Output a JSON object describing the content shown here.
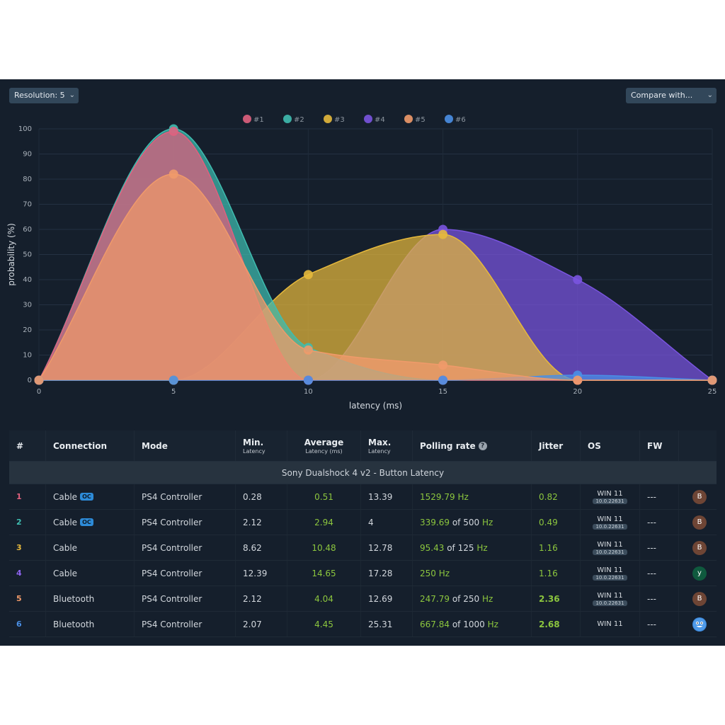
{
  "controls": {
    "resolution_label": "Resolution: 5",
    "compare_label": "Compare with..."
  },
  "chart_data": {
    "type": "area",
    "xlabel": "latency (ms)",
    "ylabel": "probability (%)",
    "xlim": [
      0,
      25
    ],
    "ylim": [
      0,
      100
    ],
    "x_ticks": [
      "0",
      "5",
      "10",
      "15",
      "20",
      "25"
    ],
    "y_ticks": [
      "0",
      "10",
      "20",
      "30",
      "40",
      "50",
      "60",
      "70",
      "80",
      "90",
      "100"
    ],
    "grid": true,
    "legend_position": "top-center",
    "x": [
      0,
      5,
      10,
      15,
      20,
      25
    ],
    "series": [
      {
        "name": "#1",
        "color": "#e0607e",
        "values": [
          0,
          99,
          0,
          0,
          0,
          0
        ]
      },
      {
        "name": "#2",
        "color": "#3fbdb0",
        "values": [
          0,
          100,
          13,
          0,
          0,
          0
        ]
      },
      {
        "name": "#3",
        "color": "#e6b93c",
        "values": [
          0,
          0,
          42,
          58,
          0,
          0
        ]
      },
      {
        "name": "#4",
        "color": "#7a54e0",
        "values": [
          0,
          0,
          0,
          60,
          40,
          0
        ]
      },
      {
        "name": "#5",
        "color": "#f09a6a",
        "values": [
          0,
          82,
          12,
          6,
          0,
          0
        ]
      },
      {
        "name": "#6",
        "color": "#4a8fe6",
        "values": [
          0,
          0,
          0,
          0,
          2,
          0
        ]
      }
    ]
  },
  "table": {
    "headers": {
      "index": "#",
      "connection": "Connection",
      "mode": "Mode",
      "min": "Min.",
      "min_sub": "Latency",
      "avg": "Average",
      "avg_sub": "Latency (ms)",
      "max": "Max.",
      "max_sub": "Latency",
      "polling": "Polling rate",
      "polling_help": "?",
      "jitter": "Jitter",
      "os": "OS",
      "fw": "FW"
    },
    "group_title": "Sony Dualshock 4 v2 - Button Latency",
    "rows": [
      {
        "idx": "1",
        "idx_color": "#e0607e",
        "connection": "Cable",
        "oc": "OC",
        "mode": "PS4 Controller",
        "min": "0.28",
        "avg": "0.51",
        "max": "13.39",
        "poll_value": "1529.79",
        "poll_of": "",
        "poll_unit": "Hz",
        "jitter": "0.82",
        "jitter_bold": false,
        "os": "WIN 11",
        "build": "10.0.22631",
        "fw": "---",
        "avatar": "B",
        "avatar_color": "#6e4535"
      },
      {
        "idx": "2",
        "idx_color": "#3fbdb0",
        "connection": "Cable",
        "oc": "OC",
        "mode": "PS4 Controller",
        "min": "2.12",
        "avg": "2.94",
        "max": "4",
        "poll_value": "339.69",
        "poll_of": "of 500",
        "poll_unit": "Hz",
        "jitter": "0.49",
        "jitter_bold": false,
        "os": "WIN 11",
        "build": "10.0.22631",
        "fw": "---",
        "avatar": "B",
        "avatar_color": "#6e4535"
      },
      {
        "idx": "3",
        "idx_color": "#e6b93c",
        "connection": "Cable",
        "oc": "",
        "mode": "PS4 Controller",
        "min": "8.62",
        "avg": "10.48",
        "max": "12.78",
        "poll_value": "95.43",
        "poll_of": "of 125",
        "poll_unit": "Hz",
        "jitter": "1.16",
        "jitter_bold": false,
        "os": "WIN 11",
        "build": "10.0.22631",
        "fw": "---",
        "avatar": "B",
        "avatar_color": "#6e4535"
      },
      {
        "idx": "4",
        "idx_color": "#8d63ef",
        "connection": "Cable",
        "oc": "",
        "mode": "PS4 Controller",
        "min": "12.39",
        "avg": "14.65",
        "max": "17.28",
        "poll_value": "250",
        "poll_of": "",
        "poll_unit": "Hz",
        "jitter": "1.16",
        "jitter_bold": false,
        "os": "WIN 11",
        "build": "10.0.22631",
        "fw": "---",
        "avatar": "y",
        "avatar_color": "#0f5a3e"
      },
      {
        "idx": "5",
        "idx_color": "#f09a6a",
        "connection": "Bluetooth",
        "oc": "",
        "mode": "PS4 Controller",
        "min": "2.12",
        "avg": "4.04",
        "max": "12.69",
        "poll_value": "247.79",
        "poll_of": "of 250",
        "poll_unit": "Hz",
        "jitter": "2.36",
        "jitter_bold": true,
        "os": "WIN 11",
        "build": "10.0.22631",
        "fw": "---",
        "avatar": "B",
        "avatar_color": "#6e4535"
      },
      {
        "idx": "6",
        "idx_color": "#4a8fe6",
        "connection": "Bluetooth",
        "oc": "",
        "mode": "PS4 Controller",
        "min": "2.07",
        "avg": "4.45",
        "max": "25.31",
        "poll_value": "667.84",
        "poll_of": "of 1000",
        "poll_unit": "Hz",
        "jitter": "2.68",
        "jitter_bold": true,
        "os": "WIN 11",
        "build": "",
        "fw": "---",
        "avatar": "",
        "avatar_color": "#3a86d9"
      }
    ]
  }
}
